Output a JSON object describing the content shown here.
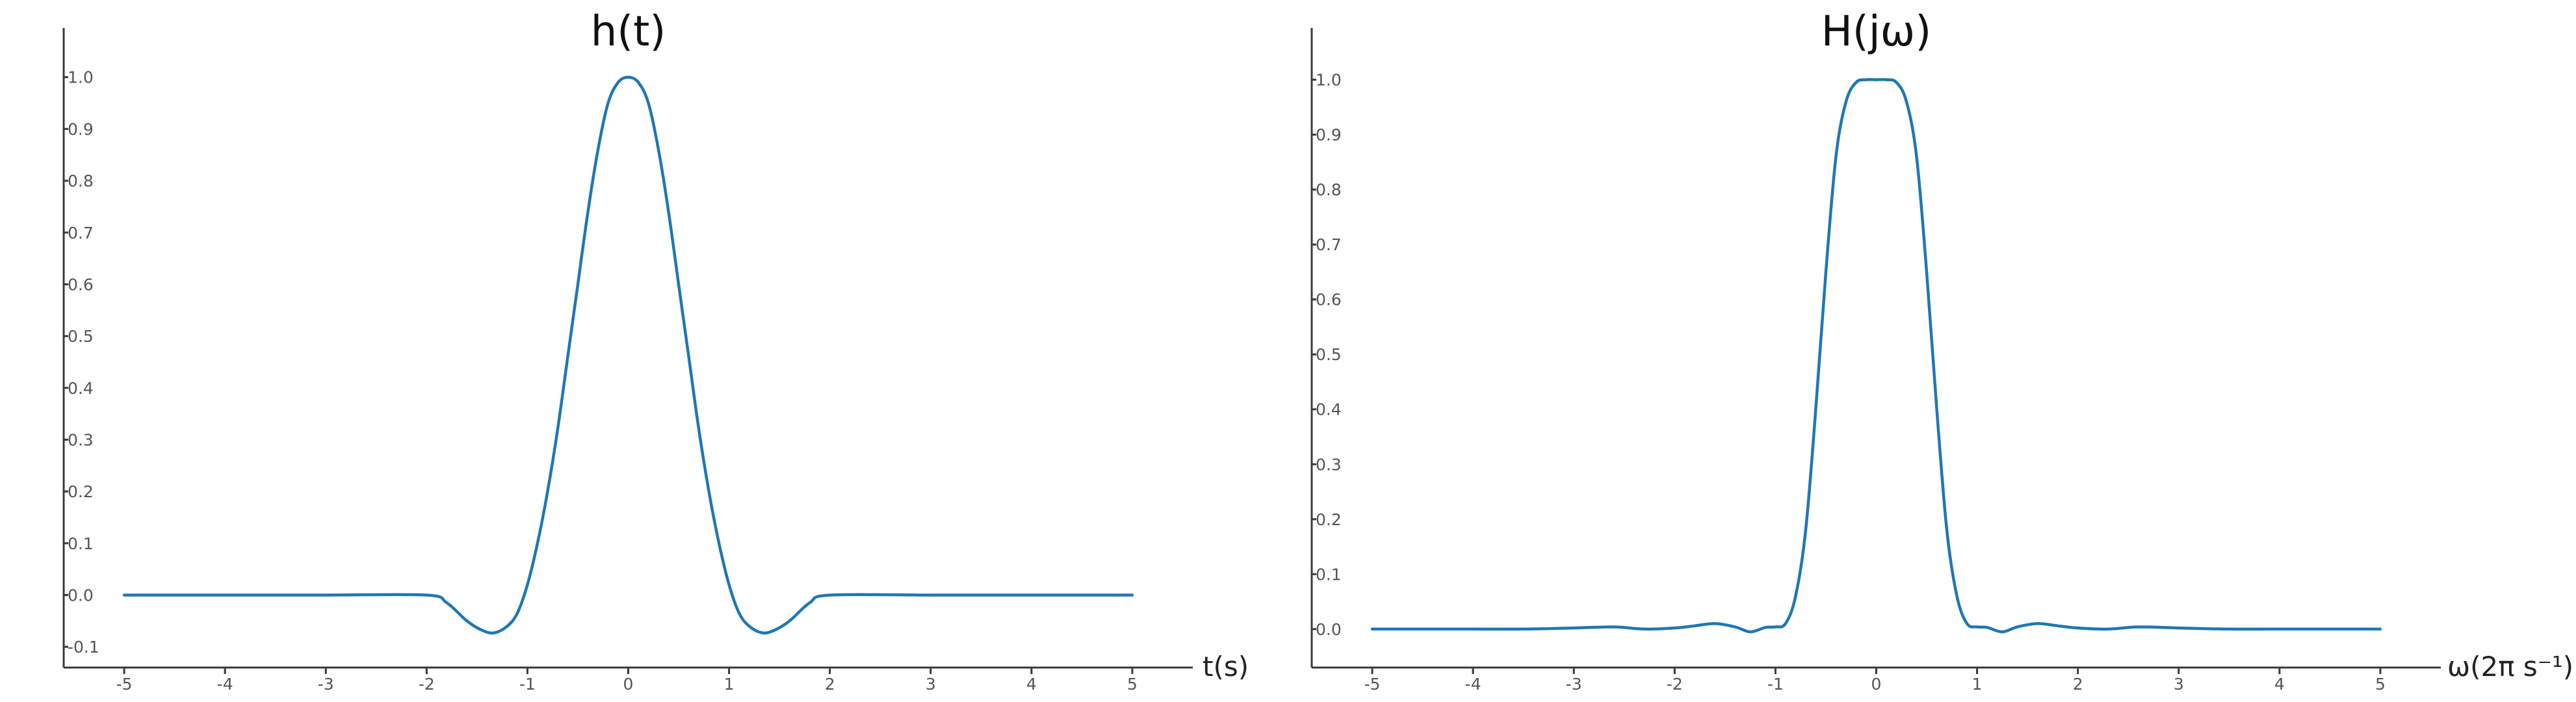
{
  "chart_data": [
    {
      "type": "line",
      "title": "h(t)",
      "xlabel": "t(s)",
      "ylabel": "",
      "xlim": [
        -5.6,
        5.6
      ],
      "ylim": [
        -0.14,
        1.08
      ],
      "xticks": [
        -5,
        -4,
        -3,
        -2,
        -1,
        0,
        1,
        2,
        3,
        4,
        5
      ],
      "yticks": [
        -0.1,
        0.0,
        0.1,
        0.2,
        0.3,
        0.4,
        0.5,
        0.6,
        0.7,
        0.8,
        0.9,
        1.0
      ],
      "grid": false,
      "color": "#1f77b4",
      "series": [
        {
          "x": [
            -5,
            -4,
            -3,
            -2.0,
            -1.8,
            -1.6,
            -1.45,
            -1.33,
            -1.2,
            -1.1,
            -1.0,
            -0.9,
            -0.8,
            -0.7,
            -0.6,
            -0.5,
            -0.4,
            -0.3,
            -0.2,
            -0.1,
            0.0,
            0.1,
            0.2,
            0.3,
            0.4,
            0.5,
            0.6,
            0.7,
            0.8,
            0.9,
            1.0,
            1.1,
            1.2,
            1.33,
            1.45,
            1.6,
            1.8,
            2.0,
            3,
            4,
            5
          ],
          "y": [
            0,
            0,
            0,
            0.0,
            -0.015,
            -0.05,
            -0.068,
            -0.073,
            -0.06,
            -0.035,
            0.02,
            0.1,
            0.2,
            0.32,
            0.46,
            0.6,
            0.74,
            0.86,
            0.95,
            0.99,
            1.0,
            0.99,
            0.95,
            0.86,
            0.74,
            0.6,
            0.46,
            0.32,
            0.2,
            0.1,
            0.02,
            -0.035,
            -0.06,
            -0.073,
            -0.068,
            -0.05,
            -0.015,
            0.0,
            0,
            0,
            0
          ]
        }
      ]
    },
    {
      "type": "line",
      "title": "H(jω)",
      "xlabel": "ω(2π s⁻¹)",
      "ylabel": "",
      "xlim": [
        -5.6,
        5.6
      ],
      "ylim": [
        -0.07,
        1.08
      ],
      "xticks": [
        -5,
        -4,
        -3,
        -2,
        -1,
        0,
        1,
        2,
        3,
        4,
        5
      ],
      "yticks": [
        0.0,
        0.1,
        0.2,
        0.3,
        0.4,
        0.5,
        0.6,
        0.7,
        0.8,
        0.9,
        1.0
      ],
      "grid": false,
      "color": "#1f77b4",
      "series": [
        {
          "x": [
            -5,
            -4,
            -3.5,
            -3.0,
            -2.6,
            -2.3,
            -2.0,
            -1.8,
            -1.6,
            -1.4,
            -1.25,
            -1.1,
            -1.0,
            -0.9,
            -0.8,
            -0.7,
            -0.6,
            -0.5,
            -0.4,
            -0.3,
            -0.2,
            -0.1,
            0.0,
            0.1,
            0.2,
            0.3,
            0.4,
            0.5,
            0.6,
            0.7,
            0.8,
            0.9,
            1.0,
            1.1,
            1.25,
            1.4,
            1.6,
            1.8,
            2.0,
            2.3,
            2.6,
            3.0,
            3.5,
            4,
            5
          ],
          "y": [
            0,
            0,
            0.0,
            0.002,
            0.004,
            0.0,
            0.002,
            0.006,
            0.01,
            0.004,
            -0.005,
            0.003,
            0.004,
            0.01,
            0.06,
            0.18,
            0.4,
            0.65,
            0.86,
            0.96,
            0.995,
            1.0,
            1.0,
            1.0,
            0.995,
            0.96,
            0.86,
            0.65,
            0.4,
            0.18,
            0.06,
            0.01,
            0.004,
            0.003,
            -0.005,
            0.004,
            0.01,
            0.006,
            0.002,
            0.0,
            0.004,
            0.002,
            0.0,
            0,
            0
          ]
        }
      ]
    }
  ]
}
